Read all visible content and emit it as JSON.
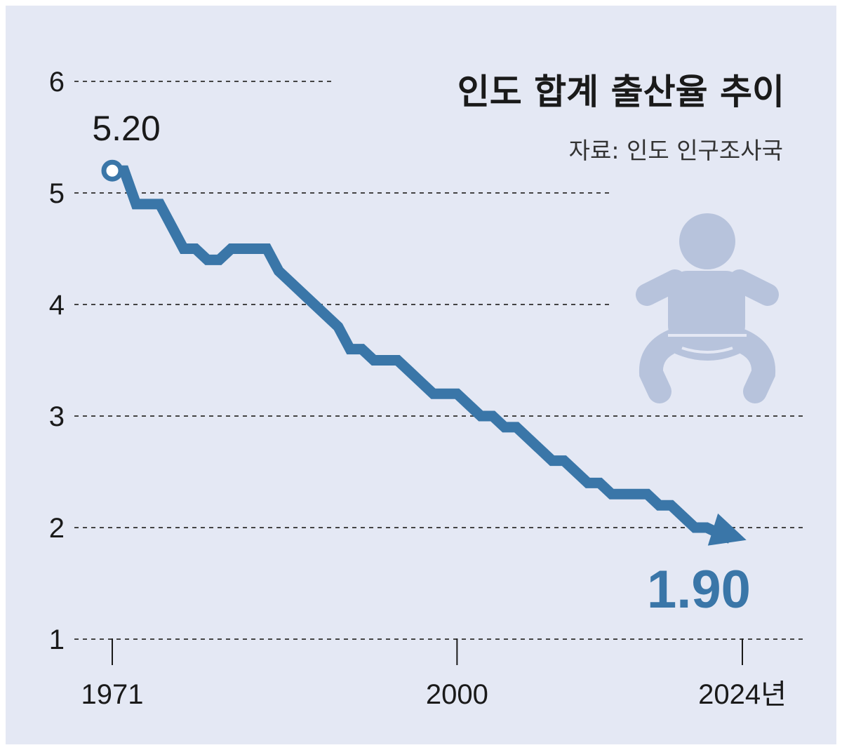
{
  "chart_data": {
    "type": "line",
    "title": "인도 합계 출산율 추이",
    "source": "자료: 인도 인구조사국",
    "x_unit": "년",
    "y_ticks": [
      1,
      2,
      3,
      4,
      5,
      6
    ],
    "x_ticks": [
      1971,
      2000,
      2024
    ],
    "x_tick_labels": [
      "1971",
      "2000",
      "2024년"
    ],
    "ylim": [
      1,
      6
    ],
    "xlim": [
      1971,
      2024
    ],
    "grid": true,
    "series": [
      {
        "x": [
          1971,
          1972,
          1973,
          1974,
          1975,
          1976,
          1977,
          1978,
          1979,
          1980,
          1981,
          1982,
          1983,
          1984,
          1985,
          1986,
          1987,
          1988,
          1989,
          1990,
          1991,
          1992,
          1993,
          1994,
          1995,
          1996,
          1997,
          1998,
          1999,
          2000,
          2001,
          2002,
          2003,
          2004,
          2005,
          2006,
          2007,
          2008,
          2009,
          2010,
          2011,
          2012,
          2013,
          2014,
          2015,
          2016,
          2017,
          2018,
          2019,
          2020,
          2021,
          2022,
          2023,
          2024
        ],
        "values": [
          5.2,
          5.2,
          4.9,
          4.9,
          4.9,
          4.7,
          4.5,
          4.5,
          4.4,
          4.4,
          4.5,
          4.5,
          4.5,
          4.5,
          4.3,
          4.2,
          4.1,
          4.0,
          3.9,
          3.8,
          3.6,
          3.6,
          3.5,
          3.5,
          3.5,
          3.4,
          3.3,
          3.2,
          3.2,
          3.2,
          3.1,
          3.0,
          3.0,
          2.9,
          2.9,
          2.8,
          2.7,
          2.6,
          2.6,
          2.5,
          2.4,
          2.4,
          2.3,
          2.3,
          2.3,
          2.3,
          2.2,
          2.2,
          2.1,
          2.0,
          2.0,
          1.95,
          1.9,
          1.9
        ]
      }
    ],
    "annotations": {
      "start_value": "5.20",
      "end_value": "1.90"
    },
    "colors": {
      "line": "#3a76a8",
      "grid": "#444444",
      "icon": "#b7c3dc"
    }
  }
}
